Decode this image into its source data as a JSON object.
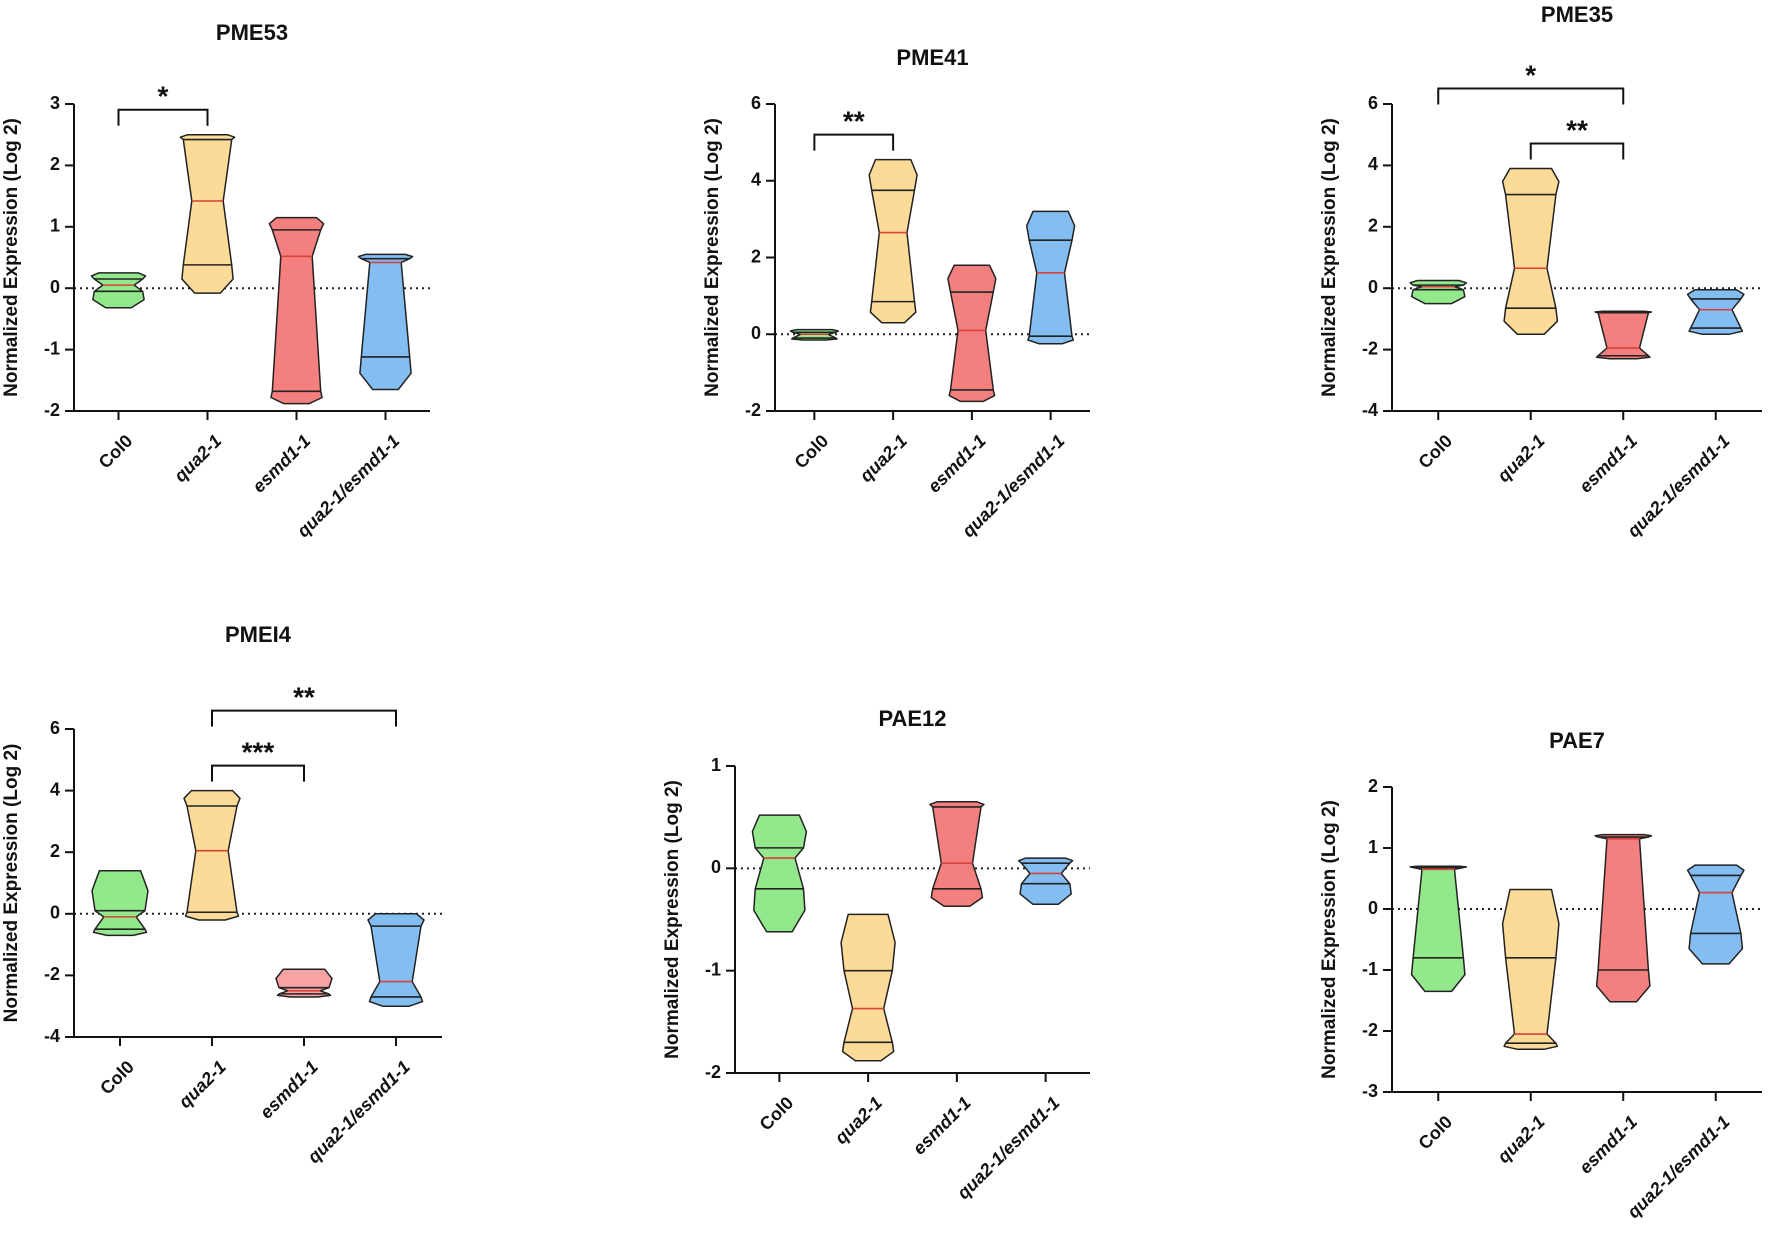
{
  "chart_data": [
    {
      "type": "violin",
      "title": "PME53",
      "ylabel": "Normalized Expression (Log 2)",
      "categories": [
        "Col0",
        "qua2-1",
        "esmd1-1",
        "qua2-1/esmd1-1"
      ],
      "colors": [
        "#93e88c",
        "#fbdb97",
        "#f47f7f",
        "#84bdf2"
      ],
      "median_color": "#d9413c",
      "violins": [
        {
          "min": -0.32,
          "q1": -0.05,
          "median": 0.05,
          "q3": 0.15,
          "max": 0.25
        },
        {
          "min": -0.08,
          "q1": 0.38,
          "median": 1.42,
          "q3": 2.42,
          "max": 2.5
        },
        {
          "min": -1.88,
          "q1": -1.68,
          "median": 0.52,
          "q3": 0.95,
          "max": 1.15
        },
        {
          "min": -1.65,
          "q1": -1.12,
          "median": 0.42,
          "q3": 0.48,
          "max": 0.55
        }
      ],
      "ylim": [
        -2,
        3
      ],
      "yticks": [
        -2,
        -1,
        0,
        1,
        2,
        3
      ],
      "hline": 0,
      "significance": [
        {
          "from": 0,
          "to": 1,
          "label": "*"
        }
      ]
    },
    {
      "type": "violin",
      "title": "PME41",
      "ylabel": "Normalized Expression (Log 2)",
      "categories": [
        "Col0",
        "qua2-1",
        "esmd1-1",
        "qua2-1/esmd1-1"
      ],
      "colors": [
        "#93e88c",
        "#fbdb97",
        "#f47f7f",
        "#84bdf2"
      ],
      "median_color": "#d9413c",
      "violins": [
        {
          "min": -0.15,
          "q1": -0.1,
          "median": 0,
          "q3": 0.05,
          "max": 0.12
        },
        {
          "min": 0.3,
          "q1": 0.85,
          "median": 2.65,
          "q3": 3.75,
          "max": 4.55
        },
        {
          "min": -1.75,
          "q1": -1.45,
          "median": 0.1,
          "q3": 1.1,
          "max": 1.8
        },
        {
          "min": -0.25,
          "q1": -0.05,
          "median": 1.6,
          "q3": 2.45,
          "max": 3.2
        }
      ],
      "ylim": [
        -2,
        6
      ],
      "yticks": [
        -2,
        0,
        2,
        4,
        6
      ],
      "hline": 0,
      "significance": [
        {
          "from": 0,
          "to": 1,
          "label": "**"
        }
      ]
    },
    {
      "type": "violin",
      "title": "PME35",
      "ylabel": "Normalized Expression (Log 2)",
      "categories": [
        "Col0",
        "qua2-1",
        "esmd1-1",
        "qua2-1/esmd1-1"
      ],
      "colors": [
        "#93e88c",
        "#fbdb97",
        "#f47f7f",
        "#84bdf2"
      ],
      "median_color": "#d9413c",
      "violins": [
        {
          "min": -0.5,
          "q1": -0.05,
          "median": 0.05,
          "q3": 0.1,
          "max": 0.25
        },
        {
          "min": -1.5,
          "q1": -0.65,
          "median": 0.65,
          "q3": 3.05,
          "max": 3.9
        },
        {
          "min": -2.3,
          "q1": -2.2,
          "median": -1.95,
          "q3": -0.8,
          "max": -0.75
        },
        {
          "min": -1.5,
          "q1": -1.3,
          "median": -0.7,
          "q3": -0.35,
          "max": -0.05
        }
      ],
      "ylim": [
        -4,
        6
      ],
      "yticks": [
        -4,
        -2,
        0,
        2,
        4,
        6
      ],
      "hline": 0,
      "significance": [
        {
          "from": 1,
          "to": 2,
          "label": "**"
        },
        {
          "from": 0,
          "to": 2,
          "label": "*"
        }
      ]
    },
    {
      "type": "violin",
      "title": "PMEI4",
      "ylabel": "Normalized Expression (Log 2)",
      "categories": [
        "Col0",
        "qua2-1",
        "esmd1-1",
        "qua2-1/esmd1-1"
      ],
      "colors": [
        "#93e88c",
        "#fbdb97",
        "#f7a3a3",
        "#84bdf2"
      ],
      "median_color": "#d9413c",
      "violins": [
        {
          "min": -0.7,
          "q1": -0.5,
          "median": -0.1,
          "q3": 0.1,
          "max": 1.4
        },
        {
          "min": -0.2,
          "q1": 0.05,
          "median": 2.05,
          "q3": 3.5,
          "max": 4.0
        },
        {
          "min": -2.7,
          "q1": -2.6,
          "median": -2.5,
          "q3": -2.4,
          "max": -1.8
        },
        {
          "min": -3.0,
          "q1": -2.7,
          "median": -2.2,
          "q3": -0.4,
          "max": 0
        }
      ],
      "ylim": [
        -4,
        6
      ],
      "yticks": [
        -4,
        -2,
        0,
        2,
        4,
        6
      ],
      "hline": 0,
      "significance": [
        {
          "from": 1,
          "to": 2,
          "label": "***"
        },
        {
          "from": 1,
          "to": 3,
          "label": "**"
        }
      ]
    },
    {
      "type": "violin",
      "title": "PAE12",
      "ylabel": "Normalized Expression (Log 2)",
      "categories": [
        "Col0",
        "qua2-1",
        "esmd1-1",
        "qua2-1/esmd1-1"
      ],
      "colors": [
        "#93e88c",
        "#fbdb97",
        "#f47f7f",
        "#84bdf2"
      ],
      "median_color": "#d9413c",
      "violins": [
        {
          "min": -0.62,
          "q1": -0.2,
          "median": 0.1,
          "q3": 0.2,
          "max": 0.52
        },
        {
          "min": -1.88,
          "q1": -1.7,
          "median": -1.37,
          "q3": -1.0,
          "max": -0.45
        },
        {
          "min": -0.37,
          "q1": -0.2,
          "median": 0.05,
          "q3": 0.6,
          "max": 0.65
        },
        {
          "min": -0.35,
          "q1": -0.15,
          "median": -0.05,
          "q3": 0.05,
          "max": 0.1
        }
      ],
      "ylim": [
        -2,
        1
      ],
      "yticks": [
        -2,
        -1,
        0,
        1
      ],
      "hline": 0,
      "significance": []
    },
    {
      "type": "violin",
      "title": "PAE7",
      "ylabel": "Normalized Expression (Log 2)",
      "categories": [
        "Col0",
        "qua2-1",
        "esmd1-1",
        "qua2-1/esmd1-1"
      ],
      "colors": [
        "#93e88c",
        "#fbdb97",
        "#f47f7f",
        "#84bdf2"
      ],
      "median_color": "#d9413c",
      "violins": [
        {
          "min": -1.35,
          "q1": -0.8,
          "median": 0.65,
          "q3": 0.68,
          "max": 0.7
        },
        {
          "min": -2.3,
          "q1": -2.2,
          "median": -2.05,
          "q3": -0.8,
          "max": 0.32
        },
        {
          "min": -1.52,
          "q1": -1.0,
          "median": 1.15,
          "q3": 1.18,
          "max": 1.22
        },
        {
          "min": -0.9,
          "q1": -0.4,
          "median": 0.27,
          "q3": 0.55,
          "max": 0.72
        }
      ],
      "ylim": [
        -3,
        2
      ],
      "yticks": [
        -3,
        -2,
        -1,
        0,
        1,
        2
      ],
      "hline": 0,
      "significance": []
    }
  ]
}
